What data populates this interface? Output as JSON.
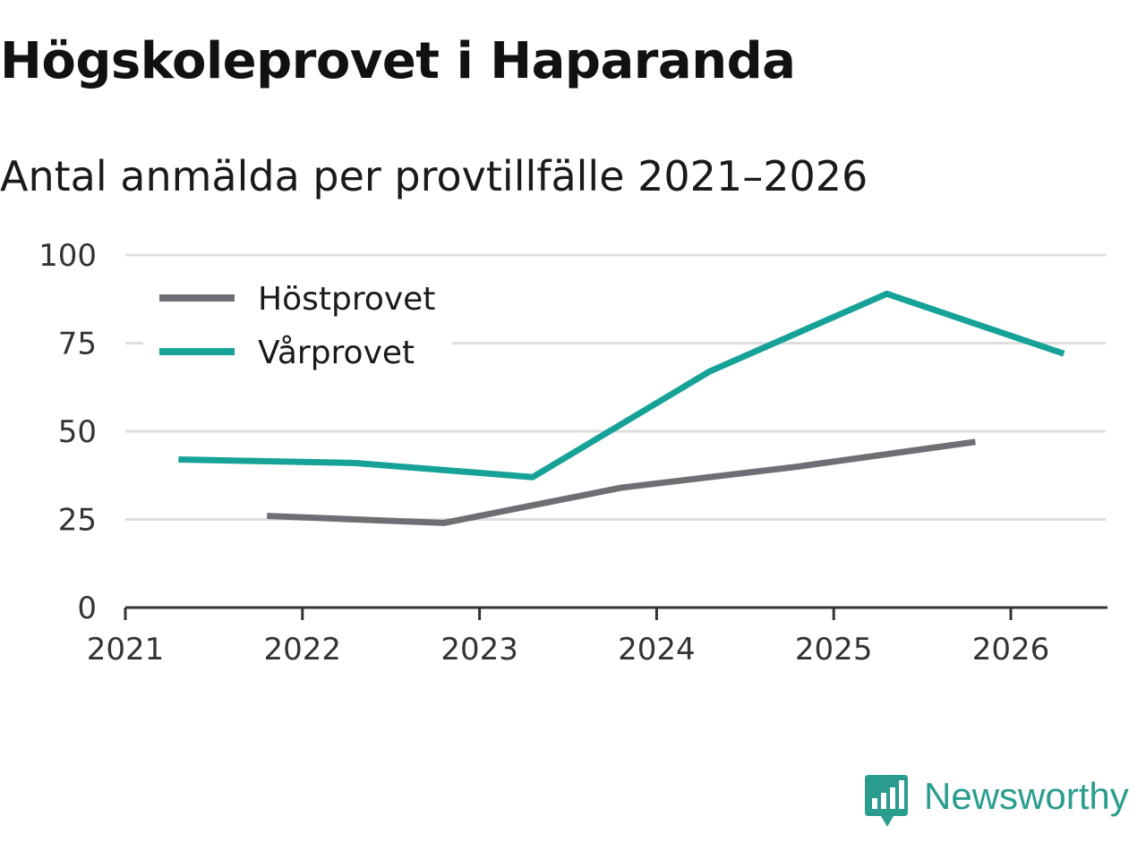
{
  "colors": {
    "background": "#ffffff",
    "gridline": "#dddddd",
    "axis": "#333333",
    "brand": "#2a9d8f"
  },
  "chart_data": {
    "type": "line",
    "title": "Högskoleprovet i Haparanda",
    "subtitle": "Antal anmälda per provtillfälle 2021–2026",
    "xlabel": "",
    "ylabel": "",
    "xlim": [
      2021,
      2026.55
    ],
    "ylim": [
      0,
      100
    ],
    "x_ticks": [
      2021,
      2022,
      2023,
      2024,
      2025,
      2026
    ],
    "y_ticks": [
      0,
      25,
      50,
      75,
      100
    ],
    "grid": true,
    "legend_position": "top-left",
    "series": [
      {
        "name": "Höstprovet",
        "color": "#6e6e75",
        "x": [
          2021.8,
          2022.8,
          2023.8,
          2024.8,
          2025.8
        ],
        "values": [
          26,
          24,
          34,
          40,
          47
        ]
      },
      {
        "name": "Vårprovet",
        "color": "#17a297",
        "x": [
          2021.3,
          2022.3,
          2023.3,
          2024.3,
          2025.3,
          2026.3
        ],
        "values": [
          42,
          41,
          37,
          67,
          89,
          72
        ]
      }
    ]
  },
  "brand": {
    "name": "Newsworthy",
    "icon": "newsworthy-logo-icon"
  }
}
